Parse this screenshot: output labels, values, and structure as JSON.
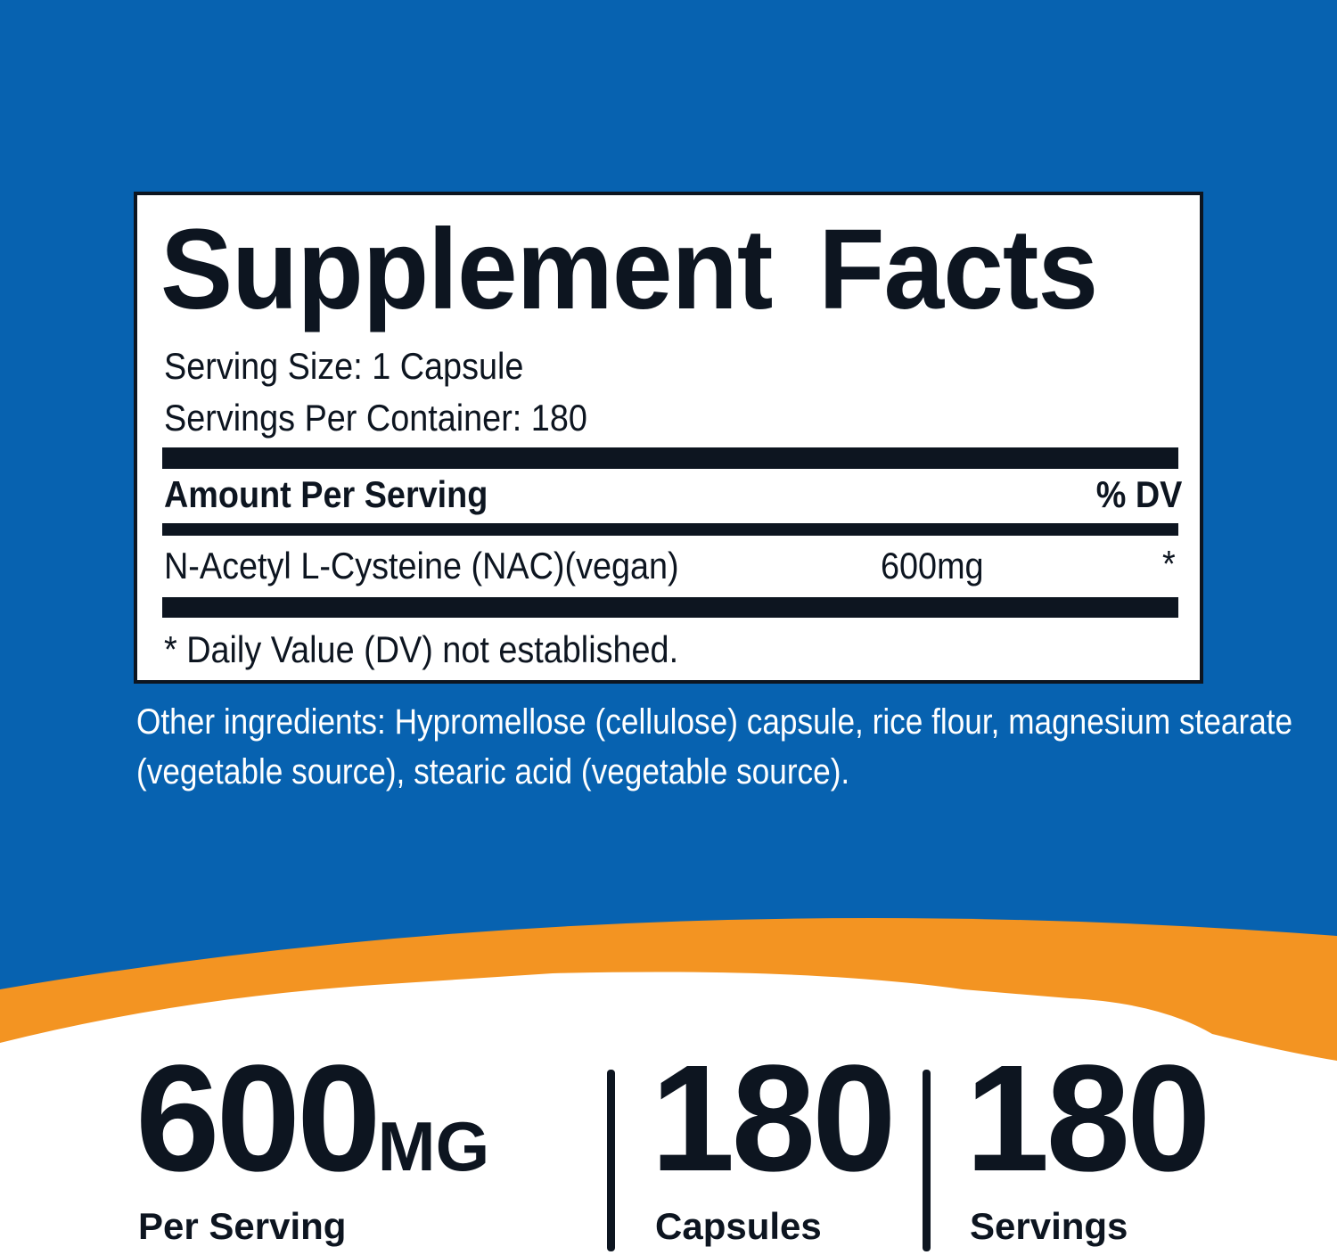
{
  "colors": {
    "background_blue": "#0762b0",
    "accent_orange": "#f39422",
    "text_dark": "#0d1520"
  },
  "facts": {
    "title": "Supplement Facts",
    "serving_size": "Serving Size: 1 Capsule",
    "servings_per_container": "Servings Per Container: 180",
    "header_amount": "Amount Per Serving",
    "header_dv": "% DV",
    "ingredient": {
      "name": "N-Acetyl L-Cysteine (NAC)(vegan)",
      "amount": "600mg",
      "dv": "*"
    },
    "footnote": "* Daily Value (DV) not established."
  },
  "other_ingredients": "Other ingredients: Hypromellose (cellulose) capsule, rice flour, magnesium stearate (vegetable source), stearic acid (vegetable source).",
  "highlights": [
    {
      "value": "600",
      "unit": "MG",
      "label": "Per Serving"
    },
    {
      "value": "180",
      "label": "Capsules"
    },
    {
      "value": "180",
      "label": "Servings"
    }
  ]
}
